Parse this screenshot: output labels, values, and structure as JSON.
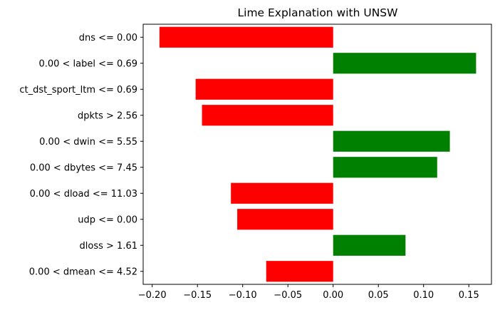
{
  "chart_data": {
    "type": "bar",
    "orientation": "horizontal",
    "title": "Lime Explanation with UNSW",
    "xlabel": "",
    "ylabel": "",
    "categories": [
      "dns <= 0.00",
      "0.00 < label <= 0.69",
      "ct_dst_sport_ltm <= 0.69",
      "dpkts > 2.56",
      "0.00 < dwin <= 5.55",
      "0.00 < dbytes <= 7.45",
      "0.00 < dload <= 11.03",
      "udp <= 0.00",
      "dloss > 1.61",
      "0.00 < dmean <= 4.52"
    ],
    "values": [
      -0.192,
      0.158,
      -0.152,
      -0.145,
      0.129,
      0.115,
      -0.113,
      -0.106,
      0.08,
      -0.074
    ],
    "xlim": [
      -0.21,
      0.175
    ],
    "xticks": [
      -0.2,
      -0.15,
      -0.1,
      -0.05,
      0.0,
      0.05,
      0.1,
      0.15
    ],
    "xtick_labels": [
      "−0.20",
      "−0.15",
      "−0.10",
      "−0.05",
      "0.00",
      "0.05",
      "0.10",
      "0.15"
    ],
    "colors": {
      "positive": "#008000",
      "negative": "#ff0000"
    },
    "grid": false,
    "legend": "none"
  }
}
